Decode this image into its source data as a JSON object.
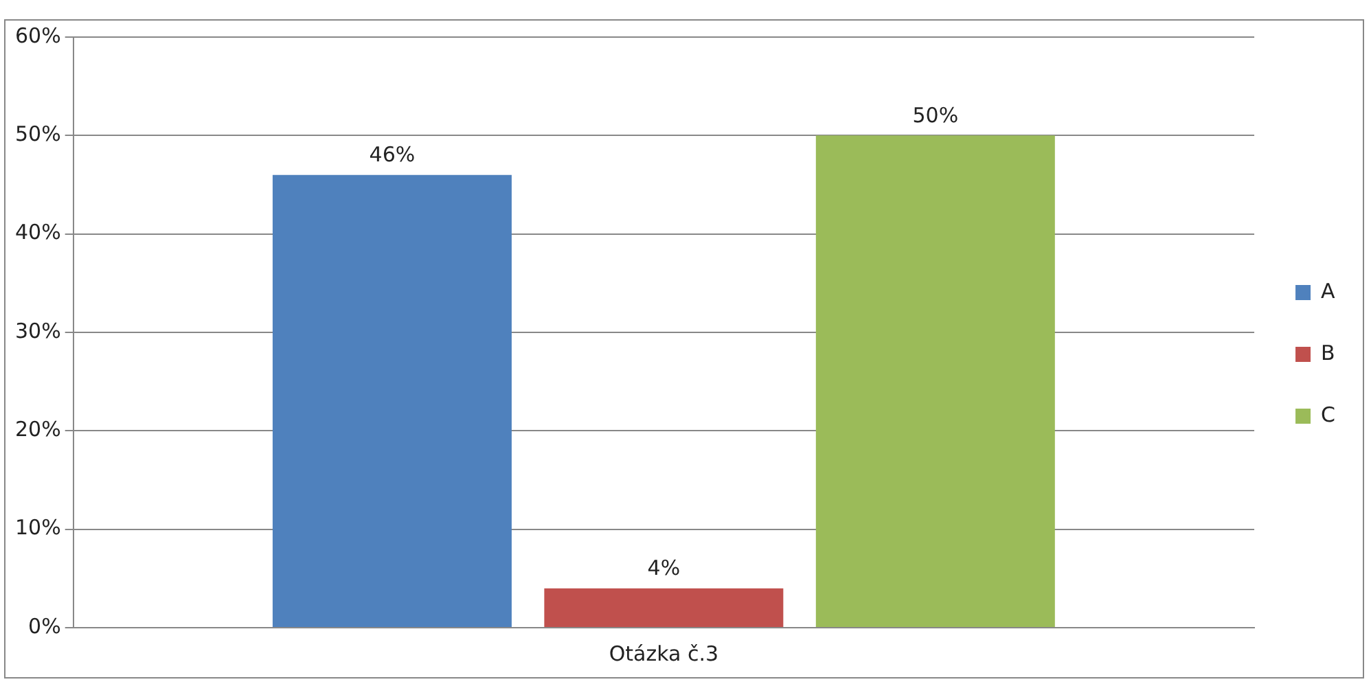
{
  "chart_data": {
    "type": "bar",
    "categories": [
      "Otázka č.3"
    ],
    "series": [
      {
        "name": "A",
        "color": "#4f81bd",
        "values": [
          46
        ],
        "value_labels": [
          "46%"
        ]
      },
      {
        "name": "B",
        "color": "#c0504d",
        "values": [
          4
        ],
        "value_labels": [
          "4%"
        ]
      },
      {
        "name": "C",
        "color": "#9bbb59",
        "values": [
          50
        ],
        "value_labels": [
          "50%"
        ]
      }
    ],
    "ylim": [
      0,
      60
    ],
    "yticks": [
      {
        "value": 0,
        "label": "0%"
      },
      {
        "value": 10,
        "label": "10%"
      },
      {
        "value": 20,
        "label": "20%"
      },
      {
        "value": 30,
        "label": "30%"
      },
      {
        "value": 40,
        "label": "40%"
      },
      {
        "value": 50,
        "label": "50%"
      },
      {
        "value": 60,
        "label": "60%"
      }
    ],
    "grid": "y",
    "legend": "right"
  }
}
